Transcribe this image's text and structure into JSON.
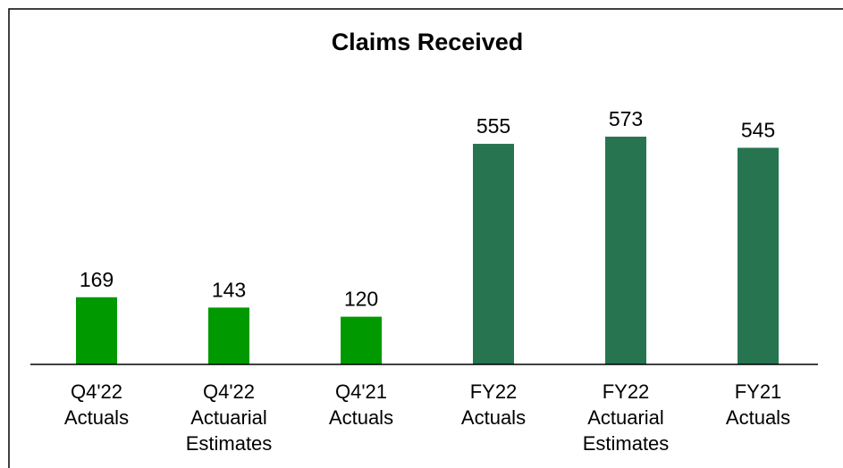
{
  "chart_data": {
    "type": "bar",
    "title": "Claims Received",
    "categories": [
      "Q4'22 Actuals",
      "Q4'22 Actuarial Estimates",
      "Q4'21 Actuals",
      "FY22 Actuals",
      "FY22 Actuarial Estimates",
      "FY21 Actuals"
    ],
    "values": [
      169,
      143,
      120,
      555,
      573,
      545
    ],
    "colors": [
      "#009a00",
      "#009a00",
      "#009a00",
      "#277550",
      "#277550",
      "#277550"
    ],
    "ylim": [
      0,
      600
    ]
  }
}
